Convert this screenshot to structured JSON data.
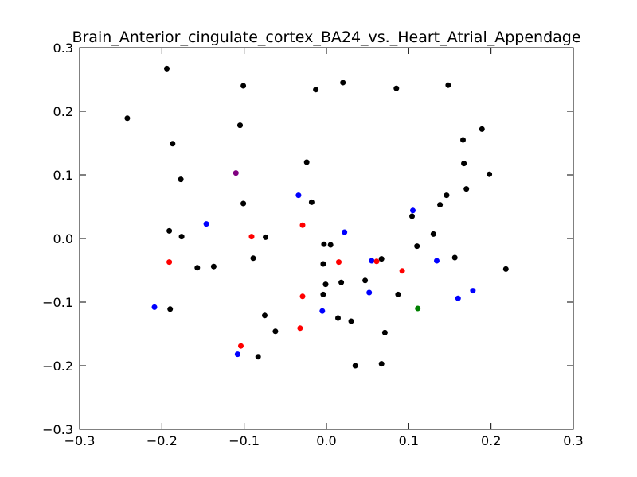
{
  "chart_data": {
    "type": "scatter",
    "title": "Brain_Anterior_cingulate_cortex_BA24_vs._Heart_Atrial_Appendage",
    "xlabel": "",
    "ylabel": "",
    "xlim": [
      -0.3,
      0.3
    ],
    "ylim": [
      -0.3,
      0.3
    ],
    "xticks": [
      -0.3,
      -0.2,
      -0.1,
      0.0,
      0.1,
      0.2,
      0.3
    ],
    "yticks": [
      -0.3,
      -0.2,
      -0.1,
      0.0,
      0.1,
      0.2,
      0.3
    ],
    "xtick_labels": [
      "−0.3",
      "−0.2",
      "−0.1",
      "0.0",
      "0.1",
      "0.2",
      "0.3"
    ],
    "ytick_labels": [
      "−0.3",
      "−0.2",
      "−0.1",
      "0.0",
      "0.1",
      "0.2",
      "0.3"
    ],
    "grid": false,
    "legend": "none",
    "series": [
      {
        "color": "#000000",
        "points": [
          [
            -0.194,
            0.267
          ],
          [
            -0.101,
            0.24
          ],
          [
            -0.013,
            0.234
          ],
          [
            0.02,
            0.245
          ],
          [
            0.085,
            0.236
          ],
          [
            0.148,
            0.241
          ],
          [
            -0.242,
            0.189
          ],
          [
            -0.105,
            0.178
          ],
          [
            -0.187,
            0.149
          ],
          [
            0.189,
            0.172
          ],
          [
            0.166,
            0.155
          ],
          [
            -0.177,
            0.093
          ],
          [
            -0.024,
            0.12
          ],
          [
            0.167,
            0.118
          ],
          [
            0.198,
            0.101
          ],
          [
            -0.101,
            0.055
          ],
          [
            -0.018,
            0.057
          ],
          [
            0.146,
            0.068
          ],
          [
            0.17,
            0.078
          ],
          [
            0.138,
            0.053
          ],
          [
            -0.191,
            0.012
          ],
          [
            -0.176,
            0.003
          ],
          [
            -0.074,
            0.002
          ],
          [
            0.104,
            0.035
          ],
          [
            0.13,
            0.007
          ],
          [
            -0.003,
            -0.009
          ],
          [
            0.005,
            -0.01
          ],
          [
            0.11,
            -0.012
          ],
          [
            -0.157,
            -0.046
          ],
          [
            -0.137,
            -0.044
          ],
          [
            -0.089,
            -0.031
          ],
          [
            -0.004,
            -0.04
          ],
          [
            0.067,
            -0.032
          ],
          [
            0.156,
            -0.03
          ],
          [
            0.218,
            -0.048
          ],
          [
            -0.001,
            -0.072
          ],
          [
            0.018,
            -0.069
          ],
          [
            0.047,
            -0.066
          ],
          [
            -0.19,
            -0.111
          ],
          [
            -0.004,
            -0.088
          ],
          [
            0.087,
            -0.088
          ],
          [
            -0.075,
            -0.121
          ],
          [
            -0.062,
            -0.146
          ],
          [
            0.014,
            -0.125
          ],
          [
            0.03,
            -0.13
          ],
          [
            0.071,
            -0.148
          ],
          [
            -0.083,
            -0.186
          ],
          [
            0.035,
            -0.2
          ],
          [
            0.067,
            -0.197
          ]
        ]
      },
      {
        "color": "#0000ff",
        "points": [
          [
            -0.034,
            0.068
          ],
          [
            0.105,
            0.044
          ],
          [
            -0.146,
            0.023
          ],
          [
            0.022,
            0.01
          ],
          [
            0.055,
            -0.035
          ],
          [
            0.134,
            -0.035
          ],
          [
            0.052,
            -0.085
          ],
          [
            0.178,
            -0.082
          ],
          [
            0.16,
            -0.094
          ],
          [
            -0.209,
            -0.108
          ],
          [
            -0.005,
            -0.114
          ],
          [
            -0.108,
            -0.182
          ]
        ]
      },
      {
        "color": "#ff0000",
        "points": [
          [
            -0.029,
            0.021
          ],
          [
            -0.091,
            0.003
          ],
          [
            -0.191,
            -0.037
          ],
          [
            0.015,
            -0.037
          ],
          [
            0.061,
            -0.036
          ],
          [
            0.092,
            -0.051
          ],
          [
            -0.029,
            -0.091
          ],
          [
            -0.032,
            -0.141
          ],
          [
            -0.104,
            -0.169
          ]
        ]
      },
      {
        "color": "#800080",
        "points": [
          [
            -0.11,
            0.103
          ]
        ]
      },
      {
        "color": "#008000",
        "points": [
          [
            0.111,
            -0.11
          ]
        ]
      }
    ]
  }
}
